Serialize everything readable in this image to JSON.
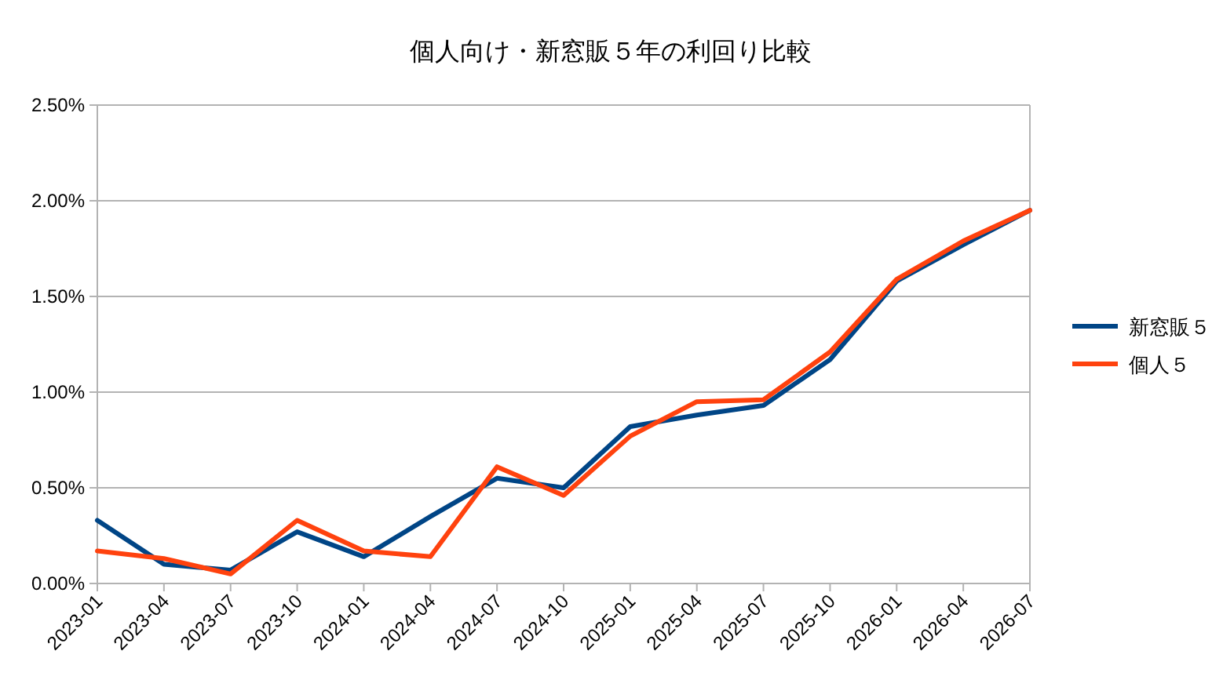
{
  "chart_data": {
    "type": "line",
    "title": "個人向け・新窓販５年の利回り比較",
    "categories": [
      "2023-01",
      "2023-04",
      "2023-07",
      "2023-10",
      "2024-01",
      "2024-04",
      "2024-07",
      "2024-10",
      "2025-01",
      "2025-04",
      "2025-07",
      "2025-10",
      "2026-01",
      "2026-04",
      "2026-07"
    ],
    "series": [
      {
        "name": "新窓販５",
        "color": "#004586",
        "values": [
          0.33,
          0.1,
          0.07,
          0.27,
          0.14,
          0.35,
          0.55,
          0.5,
          0.82,
          0.88,
          0.93,
          1.17,
          1.58,
          1.77,
          1.95
        ]
      },
      {
        "name": "個人５",
        "color": "#ff420e",
        "values": [
          0.17,
          0.13,
          0.05,
          0.33,
          0.17,
          0.14,
          0.61,
          0.46,
          0.77,
          0.95,
          0.96,
          1.21,
          1.59,
          1.79,
          1.95
        ]
      }
    ],
    "ylim": [
      0,
      2.5
    ],
    "yticks": [
      {
        "value": 0,
        "label": "0.00%"
      },
      {
        "value": 0.5,
        "label": "0.50%"
      },
      {
        "value": 1,
        "label": "1.00%"
      },
      {
        "value": 1.5,
        "label": "1.50%"
      },
      {
        "value": 2,
        "label": "2.00%"
      },
      {
        "value": 2.5,
        "label": "2.50%"
      }
    ],
    "grid": "y",
    "legend": "right",
    "marker": "none",
    "line_style": "solid"
  }
}
